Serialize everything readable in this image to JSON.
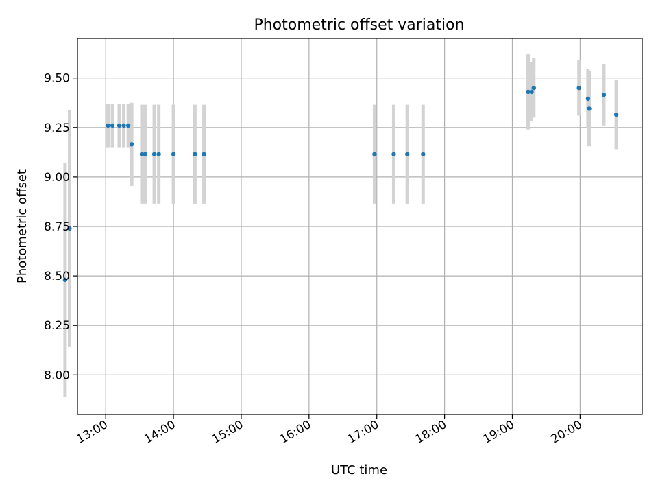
{
  "chart_data": {
    "type": "scatter",
    "title": "Photometric offset variation",
    "xlabel": "UTC time",
    "ylabel": "Photometric offset",
    "x_axis_type": "time",
    "xlim": [
      "12:35",
      "20:55"
    ],
    "ylim": [
      7.8,
      9.7
    ],
    "x_ticks": [
      "13:00",
      "14:00",
      "15:00",
      "16:00",
      "17:00",
      "18:00",
      "19:00",
      "20:00"
    ],
    "y_ticks": [
      8.0,
      8.25,
      8.5,
      8.75,
      9.0,
      9.25,
      9.5
    ],
    "y_tick_labels": [
      "8.00",
      "8.25",
      "8.50",
      "8.75",
      "9.00",
      "9.25",
      "9.50"
    ],
    "grid": true,
    "legend": "none",
    "marker_color": "#1f77b4",
    "errorbar_color": "#d3d3d3",
    "points": [
      {
        "t": "12:24",
        "y": 8.48,
        "err": 0.59
      },
      {
        "t": "12:28",
        "y": 8.74,
        "err": 0.6
      },
      {
        "t": "13:02",
        "y": 9.26,
        "err": 0.11
      },
      {
        "t": "13:06",
        "y": 9.26,
        "err": 0.11
      },
      {
        "t": "13:12",
        "y": 9.26,
        "err": 0.11
      },
      {
        "t": "13:16",
        "y": 9.26,
        "err": 0.11
      },
      {
        "t": "13:20",
        "y": 9.26,
        "err": 0.11
      },
      {
        "t": "13:23",
        "y": 9.165,
        "err": 0.21
      },
      {
        "t": "13:32",
        "y": 9.115,
        "err": 0.25
      },
      {
        "t": "13:35",
        "y": 9.115,
        "err": 0.25
      },
      {
        "t": "13:43",
        "y": 9.115,
        "err": 0.25
      },
      {
        "t": "13:47",
        "y": 9.115,
        "err": 0.25
      },
      {
        "t": "14:00",
        "y": 9.115,
        "err": 0.25
      },
      {
        "t": "14:19",
        "y": 9.115,
        "err": 0.25
      },
      {
        "t": "14:27",
        "y": 9.115,
        "err": 0.25
      },
      {
        "t": "16:58",
        "y": 9.115,
        "err": 0.25
      },
      {
        "t": "17:15",
        "y": 9.115,
        "err": 0.25
      },
      {
        "t": "17:27",
        "y": 9.115,
        "err": 0.25
      },
      {
        "t": "17:41",
        "y": 9.115,
        "err": 0.25
      },
      {
        "t": "19:14",
        "y": 9.43,
        "err": 0.19
      },
      {
        "t": "19:17",
        "y": 9.43,
        "err": 0.15
      },
      {
        "t": "19:19",
        "y": 9.45,
        "err": 0.15
      },
      {
        "t": "19:59",
        "y": 9.45,
        "err": 0.14
      },
      {
        "t": "20:07",
        "y": 9.395,
        "err": 0.15
      },
      {
        "t": "20:08",
        "y": 9.345,
        "err": 0.19
      },
      {
        "t": "20:21",
        "y": 9.415,
        "err": 0.155
      },
      {
        "t": "20:32",
        "y": 9.315,
        "err": 0.175
      }
    ]
  }
}
